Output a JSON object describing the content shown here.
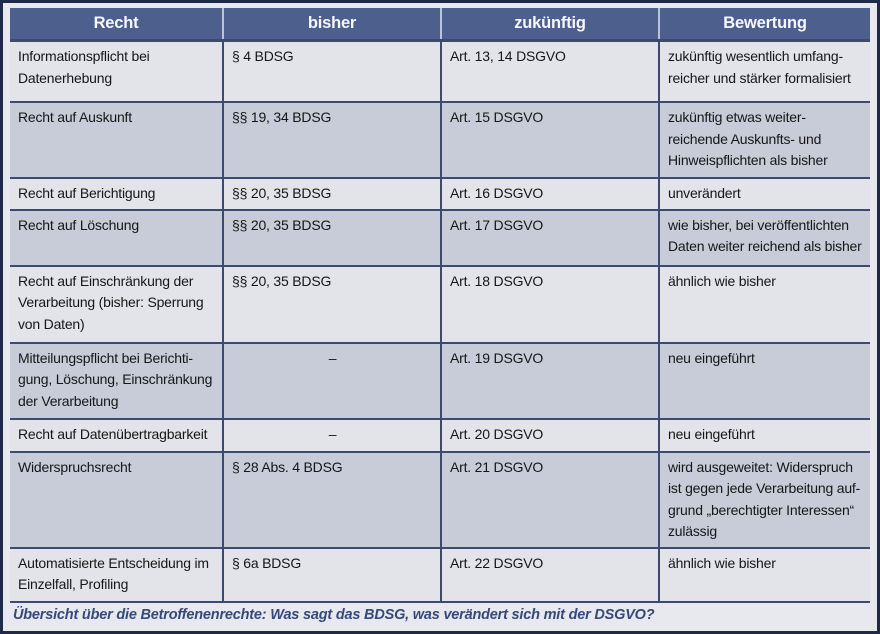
{
  "table": {
    "headers": [
      "Recht",
      "bisher",
      "zukünftig",
      "Bewertung"
    ],
    "rows": [
      {
        "recht": "Informationspflicht bei\nDatenerhebung",
        "bisher": "§ 4 BDSG",
        "zukuenftig": "Art. 13, 14 DSGVO",
        "bewertung": "zukünftig wesentlich umfang-\nreicher und stärker formalisiert"
      },
      {
        "recht": "Recht auf Auskunft",
        "bisher": "§§ 19, 34 BDSG",
        "zukuenftig": "Art. 15 DSGVO",
        "bewertung": "zukünftig etwas weiter-\nreichende Auskunfts- und\nHinweispflichten als bisher"
      },
      {
        "recht": "Recht auf Berichtigung",
        "bisher": "§§ 20, 35 BDSG",
        "zukuenftig": "Art. 16 DSGVO",
        "bewertung": "unverändert"
      },
      {
        "recht": "Recht auf Löschung",
        "bisher": "§§ 20, 35 BDSG",
        "zukuenftig": "Art. 17 DSGVO",
        "bewertung": "wie bisher, bei veröffentlichten\nDaten weiter reichend als bisher"
      },
      {
        "recht": "Recht auf Einschränkung der\nVerarbeitung (bisher: Sperrung\nvon Daten)",
        "bisher": "§§ 20, 35 BDSG",
        "zukuenftig": "Art. 18 DSGVO",
        "bewertung": "ähnlich wie bisher"
      },
      {
        "recht": "Mitteilungspflicht bei Berichti-\ngung, Löschung, Einschränkung\nder Verarbeitung",
        "bisher": "–",
        "zukuenftig": "Art. 19 DSGVO",
        "bewertung": "neu eingeführt"
      },
      {
        "recht": "Recht auf Datenübertragbarkeit",
        "bisher": "–",
        "zukuenftig": "Art. 20 DSGVO",
        "bewertung": "neu eingeführt"
      },
      {
        "recht": "Widerspruchsrecht",
        "bisher": "§ 28 Abs. 4 BDSG",
        "zukuenftig": "Art. 21 DSGVO",
        "bewertung": "wird ausgeweitet: Widerspruch\nist gegen jede Verarbeitung auf-\ngrund „berechtigter Interessen“\nzulässig"
      },
      {
        "recht": "Automatisierte Entscheidung im\nEinzelfall, Profiling",
        "bisher": "§ 6a BDSG",
        "zukuenftig": "Art. 22 DSGVO",
        "bewertung": "ähnlich wie bisher"
      }
    ],
    "caption": "Übersicht über die Betroffenenrechte: Was sagt das BDSG, was verändert sich mit der DSGVO?"
  },
  "colors": {
    "header_bg": "#4c5f8d",
    "header_text": "#f6f8fc",
    "header_divider": "#b9c3da",
    "row_light": "#e2e4ea",
    "row_dark": "#c7ccd8",
    "rule": "#3c4a70",
    "outer_border": "#1e2a48",
    "page_bg": "#e7e9ee",
    "caption_text": "#37487a",
    "body_text": "#161616"
  }
}
